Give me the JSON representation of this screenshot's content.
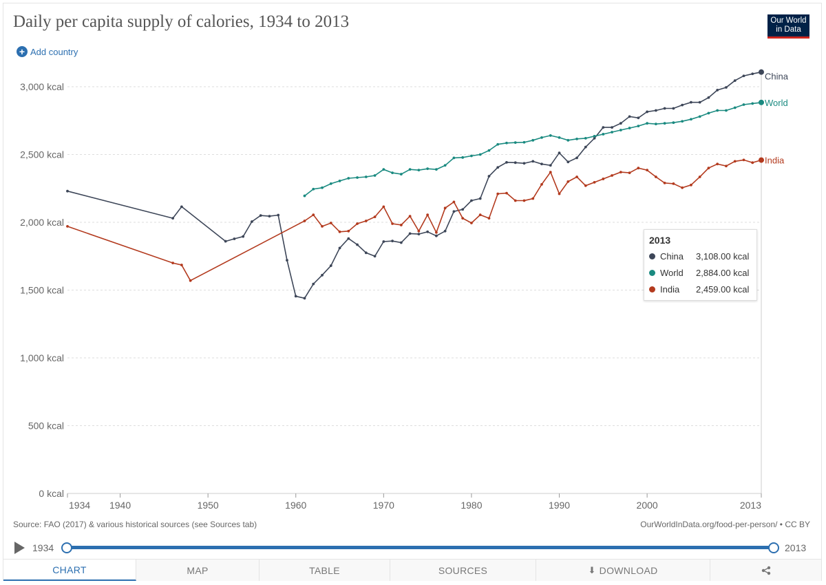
{
  "header": {
    "title": "Daily per capita supply of calories, 1934 to 2013",
    "logo_line1": "Our World",
    "logo_line2": "in Data",
    "add_country": "Add country"
  },
  "footer": {
    "source": "Source: FAO (2017) & various historical sources (see Sources tab)",
    "credit": "OurWorldInData.org/food-per-person/ • CC BY"
  },
  "timeline": {
    "start": "1934",
    "end": "2013"
  },
  "tabs": [
    {
      "label": "CHART",
      "active": true
    },
    {
      "label": "MAP",
      "active": false
    },
    {
      "label": "TABLE",
      "active": false
    },
    {
      "label": "SOURCES",
      "active": false
    },
    {
      "label": "DOWNLOAD",
      "active": false
    },
    {
      "label": "",
      "icon": "share-icon",
      "active": false
    }
  ],
  "tooltip": {
    "year": "2013",
    "rows": [
      {
        "name": "China",
        "value": "3,108.00 kcal",
        "color": "#3d4658"
      },
      {
        "name": "World",
        "value": "2,884.00 kcal",
        "color": "#1a8a80"
      },
      {
        "name": "India",
        "value": "2,459.00 kcal",
        "color": "#b33a1e"
      }
    ]
  },
  "chart_data": {
    "type": "line",
    "title": "Daily per capita supply of calories, 1934 to 2013",
    "xlabel": "",
    "ylabel": "",
    "xlim": [
      1934,
      2013
    ],
    "ylim": [
      0,
      3000
    ],
    "x_ticks": [
      1934,
      1940,
      1950,
      1960,
      1970,
      1980,
      1990,
      2000,
      2013
    ],
    "y_ticks": [
      0,
      500,
      1000,
      1500,
      2000,
      2500,
      3000
    ],
    "y_tick_labels": [
      "0 kcal",
      "500 kcal",
      "1,000 kcal",
      "1,500 kcal",
      "2,000 kcal",
      "2,500 kcal",
      "3,000 kcal"
    ],
    "grid": "horizontal dashed",
    "series": [
      {
        "name": "China",
        "color": "#3d4658",
        "points": [
          [
            1934,
            2230
          ],
          [
            1946,
            2030
          ],
          [
            1947,
            2115
          ],
          [
            1952,
            1860
          ],
          [
            1953,
            1878
          ],
          [
            1954,
            1895
          ],
          [
            1955,
            2005
          ],
          [
            1956,
            2050
          ],
          [
            1957,
            2045
          ],
          [
            1958,
            2053
          ],
          [
            1959,
            1720
          ],
          [
            1960,
            1455
          ],
          [
            1961,
            1440
          ],
          [
            1962,
            1545
          ],
          [
            1963,
            1610
          ],
          [
            1964,
            1680
          ],
          [
            1965,
            1810
          ],
          [
            1966,
            1880
          ],
          [
            1967,
            1835
          ],
          [
            1968,
            1775
          ],
          [
            1969,
            1750
          ],
          [
            1970,
            1858
          ],
          [
            1971,
            1862
          ],
          [
            1972,
            1850
          ],
          [
            1973,
            1917
          ],
          [
            1974,
            1913
          ],
          [
            1975,
            1930
          ],
          [
            1976,
            1900
          ],
          [
            1977,
            1935
          ],
          [
            1978,
            2080
          ],
          [
            1979,
            2095
          ],
          [
            1980,
            2160
          ],
          [
            1981,
            2175
          ],
          [
            1982,
            2340
          ],
          [
            1983,
            2405
          ],
          [
            1984,
            2442
          ],
          [
            1985,
            2440
          ],
          [
            1986,
            2435
          ],
          [
            1987,
            2450
          ],
          [
            1988,
            2430
          ],
          [
            1989,
            2420
          ],
          [
            1990,
            2512
          ],
          [
            1991,
            2445
          ],
          [
            1992,
            2475
          ],
          [
            1993,
            2555
          ],
          [
            1994,
            2620
          ],
          [
            1995,
            2700
          ],
          [
            1996,
            2700
          ],
          [
            1997,
            2730
          ],
          [
            1998,
            2780
          ],
          [
            1999,
            2770
          ],
          [
            2000,
            2815
          ],
          [
            2001,
            2825
          ],
          [
            2002,
            2840
          ],
          [
            2003,
            2840
          ],
          [
            2004,
            2865
          ],
          [
            2005,
            2885
          ],
          [
            2006,
            2885
          ],
          [
            2007,
            2920
          ],
          [
            2008,
            2975
          ],
          [
            2009,
            2995
          ],
          [
            2010,
            3045
          ],
          [
            2011,
            3080
          ],
          [
            2012,
            3095
          ],
          [
            2013,
            3108
          ]
        ]
      },
      {
        "name": "World",
        "color": "#1a8a80",
        "points": [
          [
            1961,
            2195
          ],
          [
            1962,
            2245
          ],
          [
            1963,
            2255
          ],
          [
            1964,
            2285
          ],
          [
            1965,
            2305
          ],
          [
            1966,
            2325
          ],
          [
            1967,
            2330
          ],
          [
            1968,
            2335
          ],
          [
            1969,
            2345
          ],
          [
            1970,
            2390
          ],
          [
            1971,
            2365
          ],
          [
            1972,
            2355
          ],
          [
            1973,
            2390
          ],
          [
            1974,
            2385
          ],
          [
            1975,
            2395
          ],
          [
            1976,
            2390
          ],
          [
            1977,
            2420
          ],
          [
            1978,
            2475
          ],
          [
            1979,
            2478
          ],
          [
            1980,
            2490
          ],
          [
            1981,
            2500
          ],
          [
            1982,
            2530
          ],
          [
            1983,
            2575
          ],
          [
            1984,
            2585
          ],
          [
            1985,
            2588
          ],
          [
            1986,
            2590
          ],
          [
            1987,
            2605
          ],
          [
            1988,
            2625
          ],
          [
            1989,
            2640
          ],
          [
            1990,
            2625
          ],
          [
            1991,
            2605
          ],
          [
            1992,
            2615
          ],
          [
            1993,
            2620
          ],
          [
            1994,
            2635
          ],
          [
            1995,
            2650
          ],
          [
            1996,
            2665
          ],
          [
            1997,
            2680
          ],
          [
            1998,
            2695
          ],
          [
            1999,
            2710
          ],
          [
            2000,
            2730
          ],
          [
            2001,
            2725
          ],
          [
            2002,
            2730
          ],
          [
            2003,
            2735
          ],
          [
            2004,
            2745
          ],
          [
            2005,
            2760
          ],
          [
            2006,
            2780
          ],
          [
            2007,
            2805
          ],
          [
            2008,
            2825
          ],
          [
            2009,
            2825
          ],
          [
            2010,
            2845
          ],
          [
            2011,
            2868
          ],
          [
            2012,
            2876
          ],
          [
            2013,
            2884
          ]
        ]
      },
      {
        "name": "India",
        "color": "#b33a1e",
        "points": [
          [
            1934,
            1970
          ],
          [
            1946,
            1700
          ],
          [
            1947,
            1685
          ],
          [
            1948,
            1570
          ],
          [
            1961,
            2010
          ],
          [
            1962,
            2055
          ],
          [
            1963,
            1970
          ],
          [
            1964,
            1995
          ],
          [
            1965,
            1930
          ],
          [
            1966,
            1935
          ],
          [
            1967,
            1990
          ],
          [
            1968,
            2010
          ],
          [
            1969,
            2040
          ],
          [
            1970,
            2115
          ],
          [
            1971,
            1990
          ],
          [
            1972,
            1980
          ],
          [
            1973,
            2045
          ],
          [
            1974,
            1935
          ],
          [
            1975,
            2055
          ],
          [
            1976,
            1925
          ],
          [
            1977,
            2105
          ],
          [
            1978,
            2150
          ],
          [
            1979,
            2030
          ],
          [
            1980,
            1995
          ],
          [
            1981,
            2055
          ],
          [
            1982,
            2030
          ],
          [
            1983,
            2210
          ],
          [
            1984,
            2215
          ],
          [
            1985,
            2160
          ],
          [
            1986,
            2160
          ],
          [
            1987,
            2175
          ],
          [
            1988,
            2280
          ],
          [
            1989,
            2370
          ],
          [
            1990,
            2210
          ],
          [
            1991,
            2300
          ],
          [
            1992,
            2335
          ],
          [
            1993,
            2270
          ],
          [
            1994,
            2295
          ],
          [
            1995,
            2320
          ],
          [
            1996,
            2345
          ],
          [
            1997,
            2370
          ],
          [
            1998,
            2365
          ],
          [
            1999,
            2400
          ],
          [
            2000,
            2385
          ],
          [
            2001,
            2335
          ],
          [
            2002,
            2290
          ],
          [
            2003,
            2285
          ],
          [
            2004,
            2255
          ],
          [
            2005,
            2275
          ],
          [
            2006,
            2335
          ],
          [
            2007,
            2400
          ],
          [
            2008,
            2430
          ],
          [
            2009,
            2415
          ],
          [
            2010,
            2450
          ],
          [
            2011,
            2460
          ],
          [
            2012,
            2440
          ],
          [
            2013,
            2459
          ]
        ]
      }
    ]
  }
}
